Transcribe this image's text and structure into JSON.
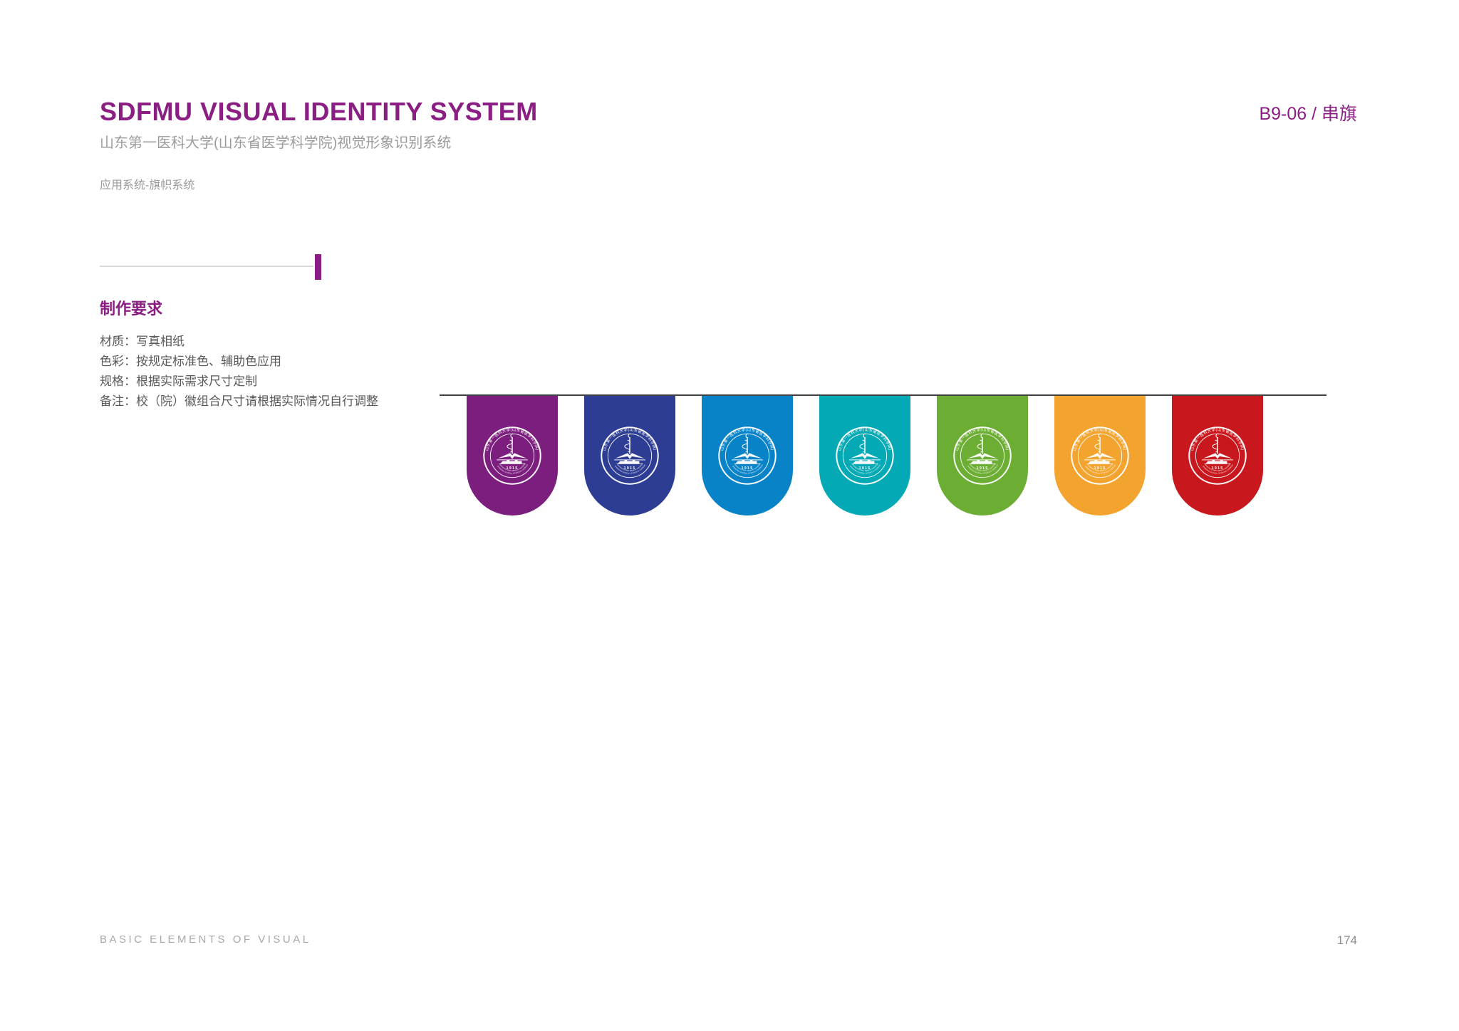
{
  "theme": {
    "accent": "#8B1E83",
    "string_line_color": "#3F3F3F",
    "subtitle_gray": "#9B9B9B",
    "spec_text_gray": "#595959",
    "footer_gray": "#A8A8A8"
  },
  "header": {
    "title": "SDFMU VISUAL IDENTITY SYSTEM",
    "subtitle": "山东第一医科大学(山东省医学科学院)视觉形象识别系统",
    "section_label": "应用系统-旗帜系统",
    "page_code": "B9-06 / 串旗"
  },
  "requirements": {
    "heading": "制作要求",
    "items": [
      "材质：写真相纸",
      "色彩：按规定标准色、辅助色应用",
      "规格：根据实际需求尺寸定制",
      "备注：校（院）徽组合尺寸请根据实际情况自行调整"
    ]
  },
  "flags": {
    "items": [
      {
        "name": "purple",
        "color": "#7C1E7E"
      },
      {
        "name": "dark-blue",
        "color": "#2E3D94"
      },
      {
        "name": "blue",
        "color": "#0983C7"
      },
      {
        "name": "teal",
        "color": "#03A9B4"
      },
      {
        "name": "green",
        "color": "#6CAD33"
      },
      {
        "name": "orange",
        "color": "#F2A42E"
      },
      {
        "name": "red",
        "color": "#C8171D"
      }
    ],
    "emblem": {
      "year": "1915",
      "arc_text_cn": "山东第一医科大学(山东省医学科学院)",
      "arc_text_en1": "SHANDONG FIRST MEDICAL UNIVERSITY",
      "arc_text_en2": "SHANDONG ACADEMY OF MEDICAL SCIENCES"
    }
  },
  "footer": {
    "left_text": "BASIC ELEMENTS OF VISUAL",
    "page_number": "174"
  }
}
